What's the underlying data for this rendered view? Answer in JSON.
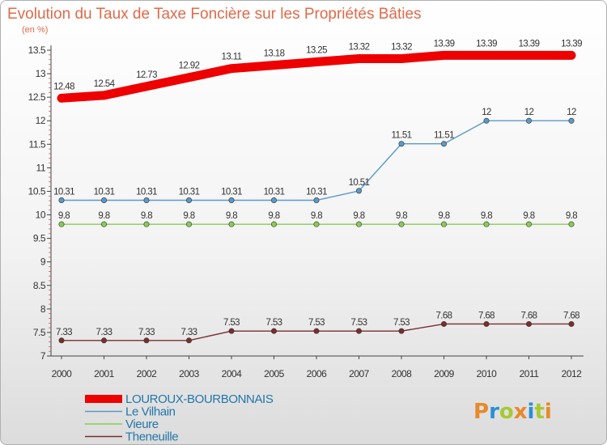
{
  "chart_data": {
    "type": "line",
    "title": "Evolution du Taux de Taxe Foncière sur les Propriétés Bâties",
    "subtitle": "(en %)",
    "x": [
      "2000",
      "2001",
      "2002",
      "2003",
      "2004",
      "2005",
      "2006",
      "2007",
      "2008",
      "2009",
      "2010",
      "2011",
      "2012"
    ],
    "ylim": [
      7,
      13.5
    ],
    "yticks": [
      "7",
      "7.5",
      "8",
      "8.5",
      "9",
      "9.5",
      "10",
      "10.5",
      "11",
      "11.5",
      "12",
      "12.5",
      "13",
      "13.5"
    ],
    "grid": false,
    "legend_position": "bottom-left",
    "series": [
      {
        "name": "LOUROUX-BOURBONNAIS",
        "color": "#ee0000",
        "values": [
          12.48,
          12.54,
          12.73,
          12.92,
          13.11,
          13.18,
          13.25,
          13.32,
          13.32,
          13.39,
          13.39,
          13.39,
          13.39
        ],
        "labels": [
          "12.48",
          "12.54",
          "12.73",
          "12.92",
          "13.11",
          "13.18",
          "13.25",
          "13.32",
          "13.32",
          "13.39",
          "13.39",
          "13.39",
          "13.39"
        ]
      },
      {
        "name": "Le Vilhain",
        "color": "#5a9ac8",
        "values": [
          10.31,
          10.31,
          10.31,
          10.31,
          10.31,
          10.31,
          10.31,
          10.51,
          11.51,
          11.51,
          12,
          12,
          12
        ],
        "labels": [
          "10.31",
          "10.31",
          "10.31",
          "10.31",
          "10.31",
          "10.31",
          "10.31",
          "10.51",
          "11.51",
          "11.51",
          "12",
          "12",
          "12"
        ]
      },
      {
        "name": "Vieure",
        "color": "#88cc55",
        "values": [
          9.8,
          9.8,
          9.8,
          9.8,
          9.8,
          9.8,
          9.8,
          9.8,
          9.8,
          9.8,
          9.8,
          9.8,
          9.8
        ],
        "labels": [
          "9.8",
          "9.8",
          "9.8",
          "9.8",
          "9.8",
          "9.8",
          "9.8",
          "9.8",
          "9.8",
          "9.8",
          "9.8",
          "9.8",
          "9.8"
        ]
      },
      {
        "name": "Theneuille",
        "color": "#7a2e2e",
        "values": [
          7.33,
          7.33,
          7.33,
          7.33,
          7.53,
          7.53,
          7.53,
          7.53,
          7.53,
          7.68,
          7.68,
          7.68,
          7.68
        ],
        "labels": [
          "7.33",
          "7.33",
          "7.33",
          "7.33",
          "7.53",
          "7.53",
          "7.53",
          "7.53",
          "7.53",
          "7.68",
          "7.68",
          "7.68",
          "7.68"
        ]
      }
    ]
  },
  "logo": {
    "text": "Proxiti",
    "colors": [
      "#e8892a",
      "#2a8fd6",
      "#a8c832",
      "#e8892a",
      "#2a8fd6",
      "#a8c832",
      "#e8892a"
    ]
  }
}
